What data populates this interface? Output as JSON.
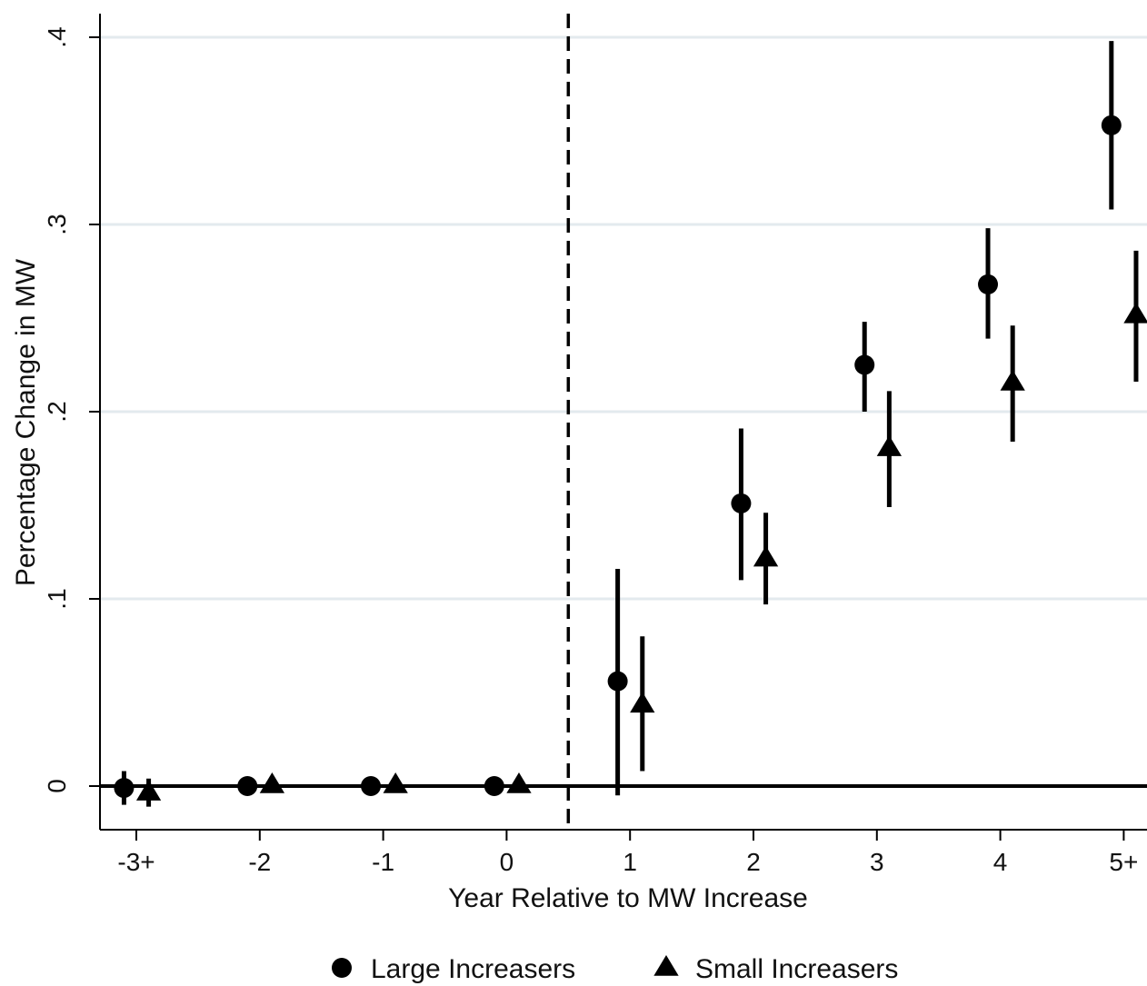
{
  "chart_data": {
    "type": "scatter",
    "title": "",
    "xlabel": "Year Relative to MW Increase",
    "ylabel": "Percentage Change in MW",
    "categories": [
      "-3+",
      "-2",
      "-1",
      "0",
      "1",
      "2",
      "3",
      "4",
      "5+"
    ],
    "category_positions": [
      -3,
      -2,
      -1,
      0,
      1,
      2,
      3,
      4,
      5
    ],
    "ylim": [
      -0.024,
      0.413
    ],
    "yticks": [
      0,
      0.1,
      0.2,
      0.3,
      0.4
    ],
    "ytick_labels": [
      "0",
      ".1",
      ".2",
      ".3",
      ".4"
    ],
    "grid": "horizontal",
    "event_line_x": 0.5,
    "legend_position": "bottom",
    "series": [
      {
        "name": "Large Increasers",
        "marker": "circle",
        "color": "#000000",
        "x": [
          -3.1,
          -2.1,
          -1.1,
          -0.1,
          0.9,
          1.9,
          2.9,
          3.9,
          4.9
        ],
        "y": [
          -0.001,
          0.0,
          0.0,
          0.0,
          0.056,
          0.151,
          0.225,
          0.268,
          0.353
        ],
        "ci_low": [
          -0.01,
          0.0,
          0.0,
          0.0,
          -0.005,
          0.11,
          0.2,
          0.239,
          0.308
        ],
        "ci_high": [
          0.008,
          0.0,
          0.0,
          0.0,
          0.116,
          0.191,
          0.248,
          0.298,
          0.398
        ]
      },
      {
        "name": "Small Increasers",
        "marker": "triangle",
        "color": "#000000",
        "x": [
          -2.9,
          -1.9,
          -0.9,
          0.1,
          1.1,
          2.1,
          3.1,
          4.1,
          5.1
        ],
        "y": [
          -0.003,
          0.001,
          0.001,
          0.001,
          0.044,
          0.122,
          0.181,
          0.216,
          0.252
        ],
        "ci_low": [
          -0.011,
          0.001,
          0.001,
          0.001,
          0.008,
          0.097,
          0.149,
          0.184,
          0.216
        ],
        "ci_high": [
          0.004,
          0.001,
          0.001,
          0.001,
          0.08,
          0.146,
          0.211,
          0.246,
          0.286
        ]
      }
    ]
  }
}
